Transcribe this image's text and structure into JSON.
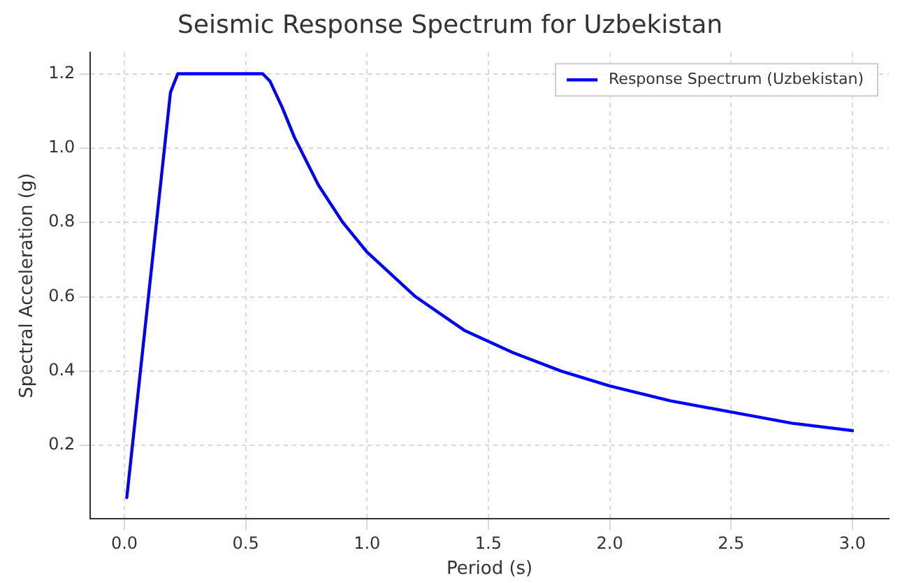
{
  "chart_data": {
    "type": "line",
    "title": "Seismic Response Spectrum for Uzbekistan",
    "xlabel": "Period (s)",
    "ylabel": "Spectral Acceleration (g)",
    "x": [
      0.01,
      0.19,
      0.22,
      0.57,
      0.6,
      0.65,
      0.7,
      0.8,
      0.9,
      1.0,
      1.2,
      1.4,
      1.6,
      1.8,
      2.0,
      2.25,
      2.5,
      2.75,
      3.0
    ],
    "series": [
      {
        "name": "Response Spectrum (Uzbekistan)",
        "color": "#0000ff",
        "values": [
          0.06,
          1.15,
          1.2,
          1.2,
          1.18,
          1.11,
          1.03,
          0.9,
          0.8,
          0.72,
          0.6,
          0.51,
          0.45,
          0.4,
          0.36,
          0.32,
          0.29,
          0.26,
          0.24
        ]
      }
    ],
    "xlim": [
      -0.14,
      3.15
    ],
    "ylim": [
      0.003,
      1.257
    ],
    "xticks": [
      {
        "value": 0,
        "label": "0.0"
      },
      0.5,
      {
        "value": 1,
        "label": "1.0"
      },
      1.5,
      {
        "value": 2,
        "label": "2.0"
      },
      2.5,
      {
        "value": 3,
        "label": "3.0"
      }
    ],
    "yticks": [
      0.2,
      0.4,
      0.6,
      0.8,
      {
        "value": 1,
        "label": "1.0"
      },
      1.2
    ],
    "grid": true,
    "legend": "top right",
    "marker": "none",
    "line_style": "solid"
  }
}
